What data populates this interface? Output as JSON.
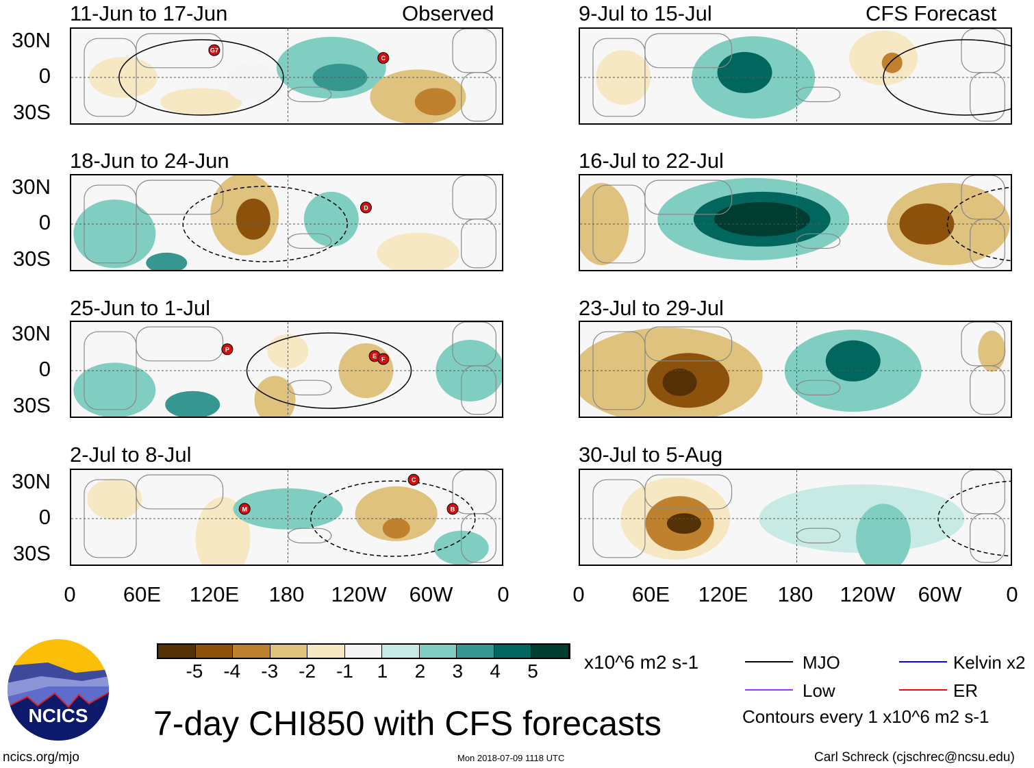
{
  "headers": {
    "left": "Observed",
    "right": "CFS Forecast"
  },
  "panels": [
    {
      "title": "11-Jun to 17-Jun",
      "storms": [
        "G7",
        "C"
      ]
    },
    {
      "title": "18-Jun to 24-Jun",
      "storms": [
        "D"
      ]
    },
    {
      "title": "25-Jun to 1-Jul",
      "storms": [
        "P",
        "E",
        "F"
      ]
    },
    {
      "title": "2-Jul to 8-Jul",
      "storms": [
        "C",
        "M",
        "B"
      ]
    },
    {
      "title": "9-Jul to 15-Jul",
      "storms": []
    },
    {
      "title": "16-Jul to 22-Jul",
      "storms": []
    },
    {
      "title": "23-Jul to 29-Jul",
      "storms": []
    },
    {
      "title": "30-Jul to 5-Aug",
      "storms": []
    }
  ],
  "lat_labels": [
    "30N",
    "0",
    "30S"
  ],
  "lon_labels": [
    "0",
    "60E",
    "120E",
    "180",
    "120W",
    "60W",
    "0"
  ],
  "colorbar": {
    "labels": [
      "-5",
      "-4",
      "-3",
      "-2",
      "-1",
      "1",
      "2",
      "3",
      "4",
      "5"
    ],
    "colors": [
      "#543005",
      "#8c510a",
      "#bf812d",
      "#dfc27d",
      "#f6e8c3",
      "#f5f5f5",
      "#c7eae5",
      "#80cdc1",
      "#35978f",
      "#01665e",
      "#003c30"
    ],
    "units": "x10^6 m2 s-1"
  },
  "legend": {
    "mjo": "MJO",
    "kelvin": "Kelvin x2",
    "low": "Low",
    "er": "ER",
    "contours": "Contours every 1 x10^6 m2 s-1",
    "colors": {
      "mjo": "#000000",
      "kelvin": "#0000ff",
      "low": "#9933ff",
      "er": "#ff0000"
    }
  },
  "title": "7-day CHI850 with CFS forecasts",
  "logo_text": "NCICS",
  "site": "ncics.org/mjo",
  "timestamp": "Mon 2018-07-09 1118 UTC",
  "author": "Carl Schreck (cjschrec@ncsu.edu)"
}
